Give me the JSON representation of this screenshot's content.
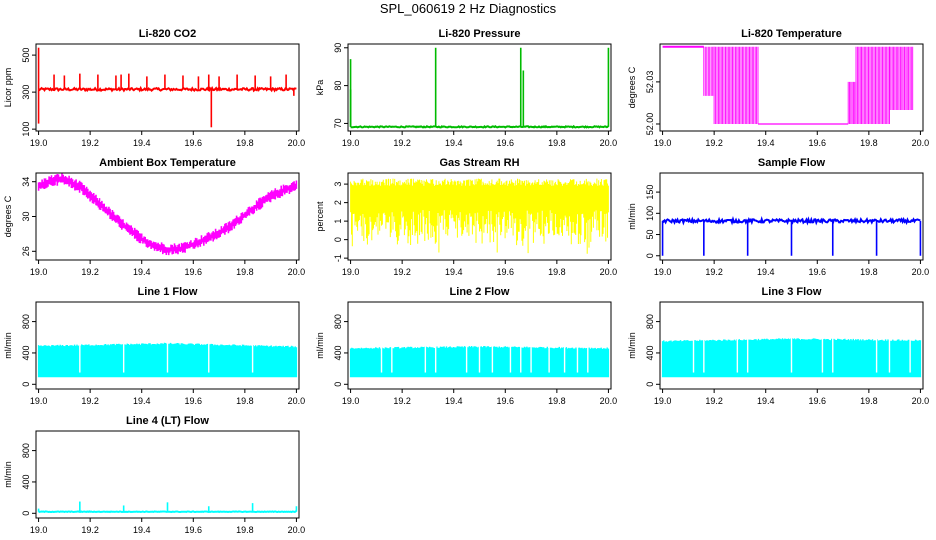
{
  "title": "SPL_060619  2 Hz Diagnostics",
  "chart_data": [
    {
      "type": "line",
      "title": "Li-820 CO2",
      "ylabel": "Licor ppm",
      "xlim": [
        18.99,
        20.01
      ],
      "ylim": [
        90,
        560
      ],
      "xticks": [
        19.0,
        19.2,
        19.4,
        19.6,
        19.8,
        20.0
      ],
      "xtick_labels": [
        "19.0",
        "19.2",
        "19.4",
        "19.6",
        "19.8",
        "20.0"
      ],
      "yticks": [
        100,
        300,
        500
      ],
      "ytick_labels": [
        "100",
        "300",
        "500"
      ],
      "color": "#ff0000",
      "series": [
        {
          "name": "Li-820 CO2",
          "style": "noise",
          "base": 315,
          "noise": 7,
          "spikes": [
            [
              19.0,
              540
            ],
            [
              19.0,
              130
            ],
            [
              19.06,
              395
            ],
            [
              19.1,
              390
            ],
            [
              19.16,
              400
            ],
            [
              19.23,
              395
            ],
            [
              19.3,
              390
            ],
            [
              19.32,
              395
            ],
            [
              19.35,
              400
            ],
            [
              19.42,
              385
            ],
            [
              19.49,
              395
            ],
            [
              19.56,
              390
            ],
            [
              19.62,
              385
            ],
            [
              19.66,
              395
            ],
            [
              19.67,
              110
            ],
            [
              19.7,
              385
            ],
            [
              19.77,
              395
            ],
            [
              19.84,
              390
            ],
            [
              19.9,
              385
            ],
            [
              19.96,
              395
            ],
            [
              19.99,
              280
            ]
          ]
        }
      ]
    },
    {
      "type": "line",
      "title": "Li-820 Pressure",
      "ylabel": "kPa",
      "xlim": [
        18.99,
        20.01
      ],
      "ylim": [
        68,
        91
      ],
      "xticks": [
        19.0,
        19.2,
        19.4,
        19.6,
        19.8,
        20.0
      ],
      "xtick_labels": [
        "19.0",
        "19.2",
        "19.4",
        "19.6",
        "19.8",
        "20.0"
      ],
      "yticks": [
        70,
        80,
        90
      ],
      "ytick_labels": [
        "70",
        "80",
        "90"
      ],
      "color": "#00bb00",
      "series": [
        {
          "name": "Li-820 Pressure",
          "style": "noise",
          "base": 69.1,
          "noise": 0.15,
          "spikes": [
            [
              19.0,
              87
            ],
            [
              19.0,
              79
            ],
            [
              19.33,
              90
            ],
            [
              19.66,
              90
            ],
            [
              19.67,
              84
            ],
            [
              20.0,
              90
            ]
          ]
        }
      ]
    },
    {
      "type": "line",
      "title": "Li-820 Temperature",
      "ylabel": "degrees C",
      "xlim": [
        18.99,
        20.01
      ],
      "ylim": [
        51.995,
        52.057
      ],
      "xticks": [
        19.0,
        19.2,
        19.4,
        19.6,
        19.8,
        20.0
      ],
      "xtick_labels": [
        "19.0",
        "19.2",
        "19.4",
        "19.6",
        "19.8",
        "20.0"
      ],
      "yticks": [
        52.0,
        52.03
      ],
      "ytick_labels": [
        "52.00",
        "52.03"
      ],
      "color": "#ff00ff",
      "series": [
        {
          "name": "Li-820 Temperature",
          "style": "levels",
          "high": 52.055,
          "low": 52.0,
          "segments": [
            [
              19.0,
              19.16,
              52.055,
              52.055
            ],
            [
              19.16,
              19.2,
              52.055,
              52.02
            ],
            [
              19.2,
              19.37,
              52.055,
              52.0
            ],
            [
              19.37,
              19.72,
              52.0,
              52.0
            ],
            [
              19.72,
              19.75,
              52.03,
              52.0
            ],
            [
              19.75,
              19.88,
              52.055,
              52.0
            ],
            [
              19.88,
              19.97,
              52.055,
              52.01
            ]
          ]
        }
      ]
    },
    {
      "type": "line",
      "title": "Ambient Box Temperature",
      "ylabel": "degrees C",
      "xlim": [
        18.99,
        20.01
      ],
      "ylim": [
        25.0,
        35.0
      ],
      "xticks": [
        19.0,
        19.2,
        19.4,
        19.6,
        19.8,
        20.0
      ],
      "xtick_labels": [
        "19.0",
        "19.2",
        "19.4",
        "19.6",
        "19.8",
        "20.0"
      ],
      "yticks": [
        26,
        30,
        34
      ],
      "ytick_labels": [
        "26",
        "30",
        "34"
      ],
      "color": "#ff00ff",
      "series": [
        {
          "name": "Ambient Box Temperature",
          "style": "curve",
          "width": 0.7,
          "x": [
            19.0,
            19.03,
            19.06,
            19.09,
            19.12,
            19.16,
            19.2,
            19.25,
            19.3,
            19.35,
            19.4,
            19.45,
            19.5,
            19.55,
            19.6,
            19.65,
            19.7,
            19.75,
            19.8,
            19.85,
            19.9,
            19.95,
            20.0
          ],
          "y": [
            33.4,
            33.9,
            34.2,
            34.3,
            34.0,
            33.4,
            32.4,
            31.1,
            29.7,
            28.5,
            27.4,
            26.6,
            26.2,
            26.3,
            26.8,
            27.4,
            28.1,
            29.0,
            30.2,
            31.3,
            32.3,
            33.0,
            33.6
          ]
        }
      ]
    },
    {
      "type": "line",
      "title": "Gas Stream RH",
      "ylabel": "percent",
      "xlim": [
        18.99,
        20.01
      ],
      "ylim": [
        -1.1,
        3.6
      ],
      "xticks": [
        19.0,
        19.2,
        19.4,
        19.6,
        19.8,
        20.0
      ],
      "xtick_labels": [
        "19.0",
        "19.2",
        "19.4",
        "19.6",
        "19.8",
        "20.0"
      ],
      "yticks": [
        -1,
        0,
        1,
        2,
        3
      ],
      "ytick_labels": [
        "-1",
        "0",
        "1",
        "2",
        "3"
      ],
      "color": "#ffff00",
      "series": [
        {
          "name": "Gas Stream RH",
          "style": "band",
          "top": 3.3,
          "bottom": 0.2,
          "dropmin": -0.8
        }
      ]
    },
    {
      "type": "line",
      "title": "Sample Flow",
      "ylabel": "ml/min",
      "xlim": [
        18.99,
        20.01
      ],
      "ylim": [
        -10,
        195
      ],
      "xticks": [
        19.0,
        19.2,
        19.4,
        19.6,
        19.8,
        20.0
      ],
      "xtick_labels": [
        "19.0",
        "19.2",
        "19.4",
        "19.6",
        "19.8",
        "20.0"
      ],
      "yticks": [
        0,
        50,
        100,
        150
      ],
      "ytick_labels": [
        "0",
        "50",
        "100",
        "150"
      ],
      "color": "#0000ff",
      "series": [
        {
          "name": "Sample Flow",
          "style": "noise",
          "base": 82,
          "noise": 4,
          "drops": [
            19.0,
            19.16,
            19.33,
            19.5,
            19.66,
            19.83,
            20.0
          ],
          "dropvalue": 0
        }
      ]
    },
    {
      "type": "line",
      "title": "Line 1 Flow",
      "ylabel": "ml/min",
      "xlim": [
        18.99,
        20.01
      ],
      "ylim": [
        -60,
        1050
      ],
      "xticks": [
        19.0,
        19.2,
        19.4,
        19.6,
        19.8,
        20.0
      ],
      "xtick_labels": [
        "19.0",
        "19.2",
        "19.4",
        "19.6",
        "19.8",
        "20.0"
      ],
      "yticks": [
        0,
        400,
        800
      ],
      "ytick_labels": [
        "0",
        "400",
        "800"
      ],
      "color": "#00ffff",
      "series": [
        {
          "name": "Line 1 Flow",
          "style": "block",
          "bottom": 90,
          "top": [
            [
              19.0,
              490
            ],
            [
              19.5,
              520
            ],
            [
              20.0,
              480
            ]
          ],
          "gaps": [
            19.16,
            19.33,
            19.5,
            19.66,
            19.83
          ]
        }
      ]
    },
    {
      "type": "line",
      "title": "Line 2 Flow",
      "ylabel": "ml/min",
      "xlim": [
        18.99,
        20.01
      ],
      "ylim": [
        -60,
        1050
      ],
      "xticks": [
        19.0,
        19.2,
        19.4,
        19.6,
        19.8,
        20.0
      ],
      "xtick_labels": [
        "19.0",
        "19.2",
        "19.4",
        "19.6",
        "19.8",
        "20.0"
      ],
      "yticks": [
        0,
        400,
        800
      ],
      "ytick_labels": [
        "0",
        "400",
        "800"
      ],
      "color": "#00ffff",
      "series": [
        {
          "name": "Line 2 Flow",
          "style": "block",
          "bottom": 90,
          "top": [
            [
              19.0,
              460
            ],
            [
              19.5,
              480
            ],
            [
              20.0,
              460
            ]
          ],
          "gaps": [
            19.12,
            19.16,
            19.29,
            19.33,
            19.45,
            19.5,
            19.55,
            19.62,
            19.66,
            19.7,
            19.77,
            19.83,
            19.88,
            19.92
          ]
        }
      ]
    },
    {
      "type": "line",
      "title": "Line 3 Flow",
      "ylabel": "ml/min",
      "xlim": [
        18.99,
        20.01
      ],
      "ylim": [
        -60,
        1050
      ],
      "xticks": [
        19.0,
        19.2,
        19.4,
        19.6,
        19.8,
        20.0
      ],
      "xtick_labels": [
        "19.0",
        "19.2",
        "19.4",
        "19.6",
        "19.8",
        "20.0"
      ],
      "yticks": [
        0,
        400,
        800
      ],
      "ytick_labels": [
        "0",
        "400",
        "800"
      ],
      "color": "#00ffff",
      "series": [
        {
          "name": "Line 3 Flow",
          "style": "block",
          "bottom": 90,
          "top": [
            [
              19.0,
              550
            ],
            [
              19.5,
              580
            ],
            [
              20.0,
              560
            ]
          ],
          "gaps": [
            19.12,
            19.16,
            19.29,
            19.33,
            19.5,
            19.62,
            19.66,
            19.83,
            19.88,
            19.96
          ]
        }
      ]
    },
    {
      "type": "line",
      "title": "Line 4 (LT) Flow",
      "ylabel": "ml/min",
      "xlim": [
        18.99,
        20.01
      ],
      "ylim": [
        -60,
        1050
      ],
      "xticks": [
        19.0,
        19.2,
        19.4,
        19.6,
        19.8,
        20.0
      ],
      "xtick_labels": [
        "19.0",
        "19.2",
        "19.4",
        "19.6",
        "19.8",
        "20.0"
      ],
      "yticks": [
        0,
        400,
        800
      ],
      "ytick_labels": [
        "0",
        "400",
        "800"
      ],
      "color": "#00ffff",
      "series": [
        {
          "name": "Line 4 (LT) Flow",
          "style": "noise",
          "base": 20,
          "noise": 4,
          "spikes": [
            [
              19.0,
              60
            ],
            [
              19.16,
              150
            ],
            [
              19.33,
              100
            ],
            [
              19.5,
              140
            ],
            [
              19.66,
              90
            ],
            [
              19.83,
              130
            ],
            [
              20.0,
              90
            ]
          ]
        }
      ]
    }
  ]
}
